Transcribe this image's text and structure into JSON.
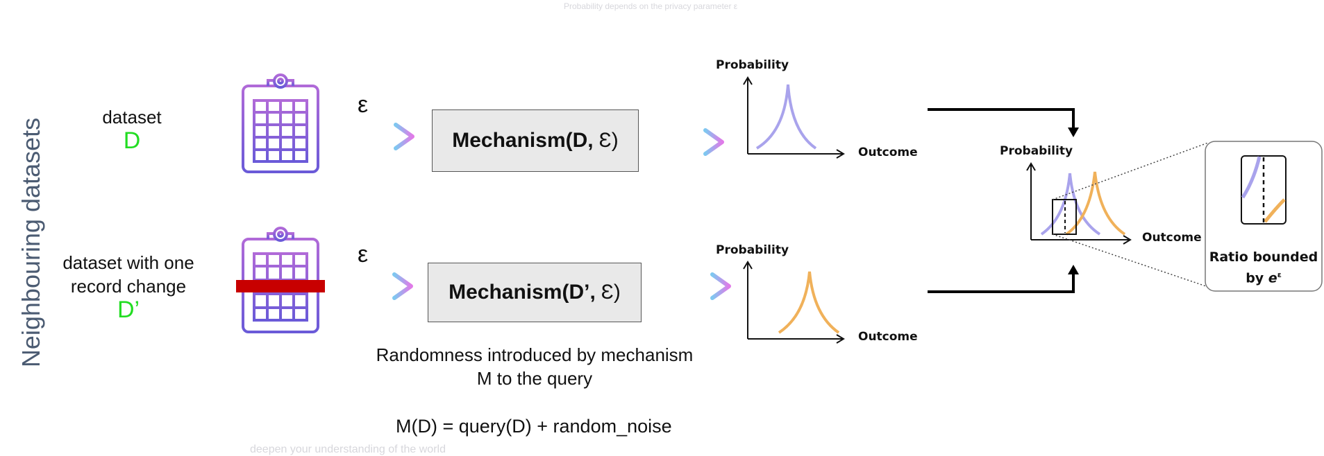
{
  "top_faint_text": "Probability depends on the privacy parameter ε",
  "bottom_faint_text": "deepen your understanding of the world",
  "side_label": "Neighbouring datasets",
  "dataset_top": {
    "label": "dataset",
    "name": "D"
  },
  "dataset_bottom": {
    "label_line1": "dataset with  one",
    "label_line2": "record change",
    "name": "D’"
  },
  "epsilon_symbol": "ε",
  "mechanism_top": {
    "text": "Mechanism(D,",
    "eps": "Ɛ)"
  },
  "mechanism_bottom": {
    "text": "Mechanism(D’,",
    "eps": "Ɛ)"
  },
  "caption": {
    "line1": "Randomness introduced by mechanism",
    "line2": "M to the query"
  },
  "formula": "M(D) = query(D) + random_noise",
  "plot_labels": {
    "y": "Probability",
    "x": "Outcome"
  },
  "zoom_caption": {
    "line1": "Ratio bounded",
    "line2_prefix": "by ",
    "line2_math": "e",
    "line2_sup": "ε"
  },
  "colors": {
    "purple_curve": "#a9a3ec",
    "orange_curve": "#f0b15a",
    "dataset_green": "#22dd22",
    "record_bar": "#c80000",
    "side_label": "#4b5b72",
    "arrow_start": "#7ec8f0",
    "arrow_end": "#e07ae8"
  }
}
